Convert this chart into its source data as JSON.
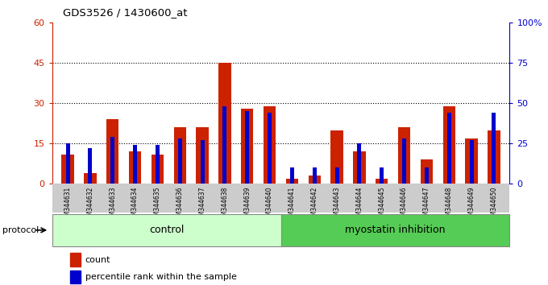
{
  "title": "GDS3526 / 1430600_at",
  "samples": [
    "GSM344631",
    "GSM344632",
    "GSM344633",
    "GSM344634",
    "GSM344635",
    "GSM344636",
    "GSM344637",
    "GSM344638",
    "GSM344639",
    "GSM344640",
    "GSM344641",
    "GSM344642",
    "GSM344643",
    "GSM344644",
    "GSM344645",
    "GSM344646",
    "GSM344647",
    "GSM344648",
    "GSM344649",
    "GSM344650"
  ],
  "counts": [
    11,
    4,
    24,
    12,
    11,
    21,
    21,
    45,
    28,
    29,
    2,
    3,
    20,
    12,
    2,
    21,
    9,
    29,
    17,
    20
  ],
  "percentile_ranks": [
    25,
    22,
    29,
    24,
    24,
    28,
    27,
    48,
    45,
    44,
    10,
    10,
    10,
    25,
    10,
    28,
    10,
    44,
    27,
    44
  ],
  "group_labels": [
    "control",
    "myostatin inhibition"
  ],
  "group_sizes": [
    10,
    10
  ],
  "bar_color": "#cc2200",
  "pct_color": "#0000cc",
  "left_ylim": [
    0,
    60
  ],
  "right_ylim": [
    0,
    100
  ],
  "left_yticks": [
    0,
    15,
    30,
    45,
    60
  ],
  "right_yticks": [
    0,
    25,
    50,
    75,
    100
  ],
  "left_yticklabels": [
    "0",
    "15",
    "30",
    "45",
    "60"
  ],
  "right_yticklabels": [
    "0",
    "25",
    "50",
    "75",
    "100%"
  ],
  "bg_color": "#cccccc",
  "plot_bg": "#ffffff",
  "legend_count": "count",
  "legend_pct": "percentile rank within the sample",
  "protocol_label": "protocol"
}
